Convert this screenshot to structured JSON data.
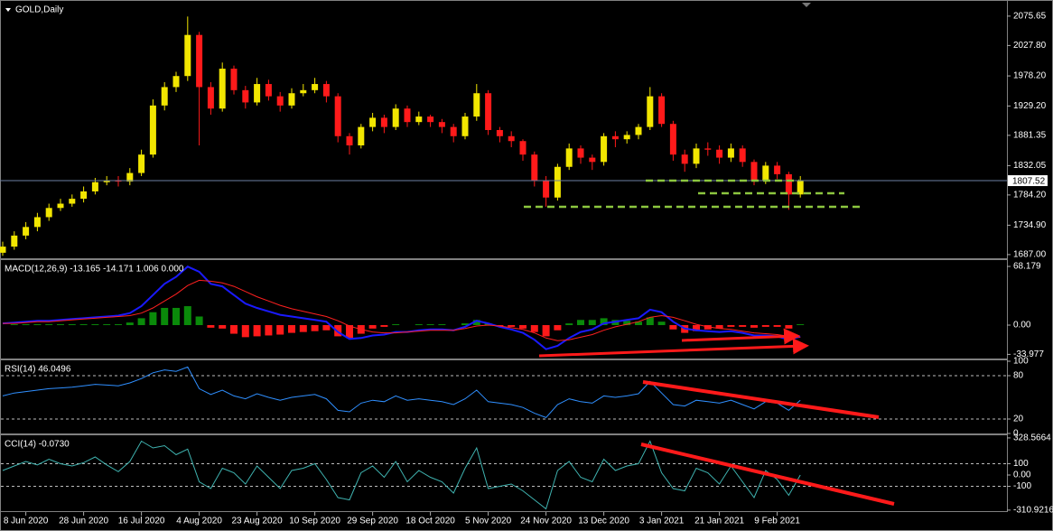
{
  "chart_data": [
    {
      "type": "candlestick",
      "title": "GOLD,Daily",
      "up_color": "#f2e600",
      "down_color": "#ff1a1a",
      "line_color": "#6b7fa3",
      "ylim": [
        1681,
        2099
      ],
      "yticks": [
        2075.65,
        {
          "value": 2027.8,
          "label": "2027.80"
        },
        {
          "value": 1978.2,
          "label": "1978.20"
        },
        {
          "value": 1929.2,
          "label": "1929.20"
        },
        1881.35,
        1832.05,
        {
          "value": 1784.2,
          "label": "1784.20"
        },
        {
          "value": 1734.9,
          "label": "1734.90"
        },
        {
          "value": 1687,
          "label": "1687.00"
        }
      ],
      "last_price": 1807.52,
      "open": [
        1690,
        1700,
        1718,
        1732,
        1748,
        1763,
        1770,
        1778,
        1790,
        1805,
        1808,
        1806,
        1820,
        1850,
        1930,
        1960,
        1978,
        2045,
        1960,
        1925,
        1990,
        1955,
        1935,
        1965,
        1945,
        1930,
        1950,
        1955,
        1965,
        1945,
        1880,
        1865,
        1895,
        1910,
        1895,
        1925,
        1903,
        1912,
        1903,
        1895,
        1880,
        1912,
        1950,
        1890,
        1880,
        1872,
        1850,
        1808,
        1780,
        1830,
        1860,
        1845,
        1838,
        1880,
        1875,
        1882,
        1895,
        1945,
        1900,
        1850,
        1835,
        1860,
        1858,
        1845,
        1860,
        1838,
        1808,
        1832,
        1818,
        1785
      ],
      "high": [
        1708,
        1725,
        1740,
        1755,
        1770,
        1778,
        1785,
        1798,
        1812,
        1815,
        1815,
        1828,
        1858,
        1940,
        1968,
        1985,
        2075,
        2050,
        1968,
        2000,
        1995,
        1962,
        1975,
        1972,
        1952,
        1958,
        1965,
        1975,
        1970,
        1950,
        1885,
        1900,
        1918,
        1915,
        1932,
        1930,
        1920,
        1915,
        1908,
        1900,
        1918,
        1965,
        1955,
        1895,
        1888,
        1875,
        1855,
        1815,
        1835,
        1868,
        1865,
        1850,
        1885,
        1888,
        1888,
        1900,
        1960,
        1950,
        1905,
        1858,
        1868,
        1870,
        1865,
        1868,
        1865,
        1842,
        1838,
        1838,
        1822,
        1815
      ],
      "low": [
        1685,
        1695,
        1712,
        1725,
        1742,
        1758,
        1765,
        1772,
        1785,
        1800,
        1798,
        1800,
        1815,
        1845,
        1922,
        1952,
        1970,
        1865,
        1915,
        1920,
        1948,
        1925,
        1930,
        1938,
        1920,
        1925,
        1945,
        1950,
        1935,
        1870,
        1850,
        1860,
        1888,
        1885,
        1890,
        1895,
        1898,
        1895,
        1885,
        1870,
        1875,
        1905,
        1882,
        1870,
        1862,
        1840,
        1798,
        1765,
        1775,
        1825,
        1835,
        1825,
        1832,
        1862,
        1868,
        1875,
        1890,
        1895,
        1840,
        1822,
        1828,
        1848,
        1835,
        1838,
        1830,
        1800,
        1802,
        1810,
        1760,
        1780
      ],
      "close": [
        1700,
        1718,
        1732,
        1748,
        1763,
        1770,
        1778,
        1790,
        1805,
        1808,
        1806,
        1820,
        1850,
        1930,
        1960,
        1978,
        2045,
        1960,
        1925,
        1990,
        1955,
        1935,
        1965,
        1945,
        1930,
        1950,
        1955,
        1965,
        1945,
        1880,
        1865,
        1895,
        1910,
        1895,
        1925,
        1903,
        1912,
        1903,
        1895,
        1880,
        1912,
        1950,
        1890,
        1880,
        1872,
        1850,
        1808,
        1780,
        1830,
        1860,
        1845,
        1838,
        1880,
        1875,
        1882,
        1895,
        1945,
        1900,
        1850,
        1835,
        1860,
        1858,
        1845,
        1860,
        1838,
        1808,
        1832,
        1818,
        1785,
        1807.52
      ]
    },
    {
      "type": "macd",
      "title": "MACD(12,26,9) -13.165 -14.171 1.006 0.000",
      "macd_color": "#1a1aff",
      "signal_color": "#ff2020",
      "positive_color": "#0a8a0a",
      "negative_color": "#ff1a1a",
      "ylim": [
        -38.8,
        74.5
      ],
      "yticks": [
        68.179,
        {
          "value": 0,
          "label": "0.00"
        },
        -33.977
      ],
      "histogram": [
        0,
        1,
        1,
        1,
        1,
        1,
        1,
        1,
        1,
        1,
        1,
        3,
        8,
        15,
        20,
        20,
        22,
        10,
        -3,
        -4,
        -10,
        -14,
        -13,
        -12,
        -11,
        -9,
        -8,
        -7,
        -6,
        -13,
        -15,
        -10,
        -4,
        -2,
        1,
        0,
        1,
        1,
        1,
        0,
        2,
        6,
        2,
        -1,
        -2,
        -4,
        -8,
        -13,
        -6,
        2,
        6,
        6,
        8,
        6,
        5,
        4,
        9,
        4,
        -5,
        -9,
        -7,
        -5,
        -4,
        -2,
        -2,
        -3,
        -2,
        -2,
        -4,
        1.006
      ],
      "macd": [
        2,
        3,
        4,
        5,
        5,
        6,
        7,
        8,
        9,
        10,
        11,
        14,
        22,
        35,
        48,
        56,
        68,
        62,
        48,
        45,
        35,
        25,
        20,
        16,
        12,
        10,
        8,
        6,
        4,
        -8,
        -16,
        -15,
        -12,
        -11,
        -8,
        -8,
        -6,
        -5,
        -5,
        -6,
        -2,
        5,
        2,
        -2,
        -5,
        -9,
        -17,
        -28,
        -24,
        -15,
        -8,
        -5,
        2,
        4,
        6,
        8,
        18,
        15,
        4,
        -4,
        -6,
        -7,
        -8,
        -7,
        -9,
        -12,
        -12,
        -13,
        -17,
        -13.165
      ],
      "signal": [
        2,
        2,
        3,
        4,
        4,
        5,
        6,
        7,
        8,
        9,
        10,
        11,
        14,
        20,
        28,
        36,
        46,
        52,
        51,
        49,
        45,
        39,
        33,
        28,
        23,
        19,
        16,
        13,
        10,
        5,
        -1,
        -5,
        -8,
        -9,
        -9,
        -8,
        -7,
        -6,
        -6,
        -6,
        -4,
        -1,
        0,
        -1,
        -3,
        -5,
        -9,
        -15,
        -18,
        -17,
        -14,
        -11,
        -6,
        -2,
        1,
        4,
        9,
        11,
        9,
        5,
        1,
        -2,
        -4,
        -5,
        -7,
        -9,
        -10,
        -11,
        -13,
        -14.171
      ]
    },
    {
      "type": "line",
      "title": "RSI(14) 46.0496",
      "color": "#2f8fff",
      "ylim": [
        0,
        100
      ],
      "yticks": [
        100,
        80,
        20,
        0
      ],
      "levels": [
        80,
        20
      ],
      "values": [
        52,
        56,
        58,
        60,
        62,
        63,
        64,
        66,
        68,
        67,
        66,
        70,
        76,
        84,
        88,
        86,
        92,
        62,
        54,
        60,
        52,
        48,
        55,
        50,
        46,
        50,
        52,
        54,
        48,
        32,
        30,
        42,
        46,
        44,
        52,
        46,
        48,
        46,
        44,
        40,
        48,
        60,
        44,
        42,
        40,
        36,
        28,
        22,
        40,
        48,
        44,
        42,
        52,
        50,
        52,
        55,
        72,
        56,
        40,
        38,
        46,
        44,
        42,
        46,
        40,
        34,
        44,
        42,
        32,
        46.0496
      ]
    },
    {
      "type": "line",
      "title": "CCI(14) -0.0730",
      "color": "#3fb3b0",
      "ylim": [
        -320,
        344
      ],
      "yticks": [
        328.5664,
        100,
        {
          "value": 0,
          "label": "0.00"
        },
        -100,
        -310.9216
      ],
      "levels": [
        100,
        -100
      ],
      "values": [
        40,
        80,
        120,
        90,
        140,
        100,
        80,
        110,
        160,
        90,
        30,
        120,
        300,
        240,
        260,
        180,
        230,
        -60,
        -120,
        60,
        20,
        -80,
        80,
        -20,
        -120,
        40,
        60,
        100,
        -40,
        -200,
        -220,
        20,
        80,
        -20,
        120,
        -60,
        40,
        -20,
        -60,
        -160,
        60,
        240,
        -120,
        -100,
        -80,
        -140,
        -220,
        -300,
        40,
        120,
        -20,
        -60,
        140,
        40,
        80,
        100,
        300,
        20,
        -120,
        -140,
        60,
        20,
        -80,
        80,
        -60,
        -200,
        40,
        -40,
        -180,
        -0.073
      ],
      "categories": [
        null,
        null,
        "8 Jun 2020",
        null,
        null,
        null,
        null,
        "28 Jun 2020",
        null,
        null,
        null,
        null,
        "16 Jul 2020",
        null,
        null,
        null,
        null,
        "4 Aug 2020",
        null,
        null,
        null,
        null,
        "23 Aug 2020",
        null,
        null,
        null,
        null,
        "10 Sep 2020",
        null,
        null,
        null,
        null,
        "29 Sep 2020",
        null,
        null,
        null,
        null,
        "18 Oct 2020",
        null,
        null,
        null,
        null,
        "5 Nov 2020",
        null,
        null,
        null,
        null,
        "24 Nov 2020",
        null,
        null,
        null,
        null,
        "13 Dec 2020",
        null,
        null,
        null,
        null,
        "3 Jan 2021",
        null,
        null,
        null,
        null,
        "21 Jan 2021",
        null,
        null,
        null,
        null,
        "9 Feb 2021",
        null,
        null
      ]
    }
  ]
}
